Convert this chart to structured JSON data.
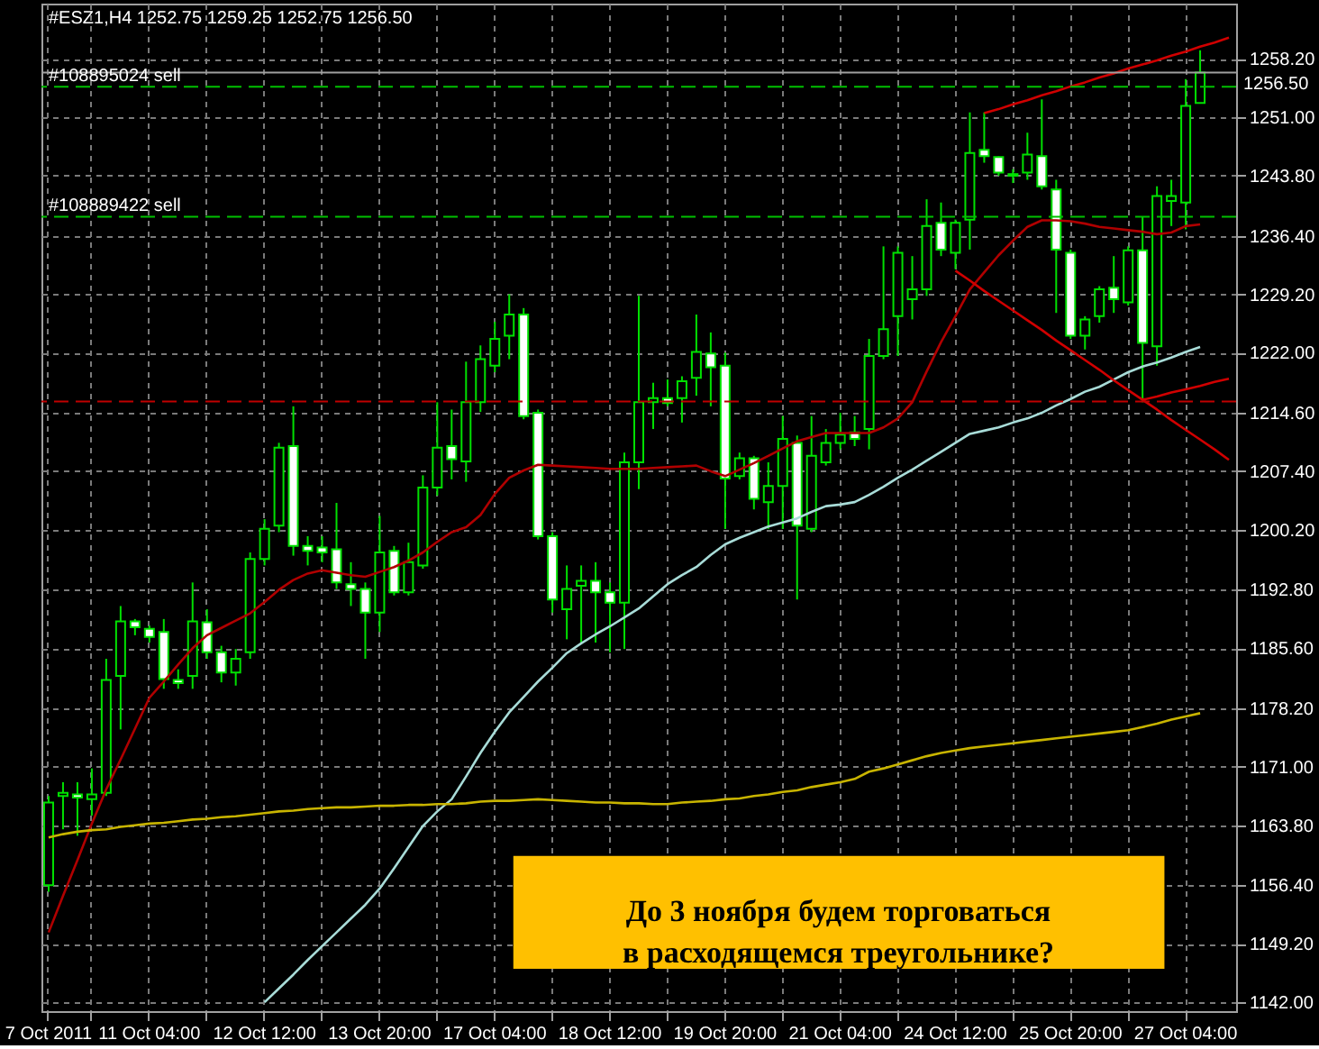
{
  "chart_data": {
    "type": "candlestick",
    "title": "#ESZ1,H4  1252.75 1259.25 1252.75 1256.50",
    "color": "#00e000",
    "categories": [
      "7 Oct 2011",
      null,
      null,
      null,
      null,
      null,
      null,
      "11 Oct 04:00",
      null,
      null,
      null,
      null,
      null,
      null,
      null,
      "12 Oct 12:00",
      null,
      null,
      null,
      null,
      null,
      null,
      null,
      "13 Oct 20:00",
      null,
      null,
      null,
      null,
      null,
      null,
      null,
      "17 Oct 04:00",
      null,
      null,
      null,
      null,
      null,
      null,
      null,
      "18 Oct 12:00",
      null,
      null,
      null,
      null,
      null,
      null,
      null,
      "19 Oct 20:00",
      null,
      null,
      null,
      null,
      null,
      null,
      null,
      "21 Oct 04:00",
      null,
      null,
      null,
      null,
      null,
      null,
      null,
      "24 Oct 12:00",
      null,
      null,
      null,
      null,
      null,
      null,
      null,
      "25 Oct 20:00",
      null,
      null,
      null,
      null,
      null,
      null,
      null,
      "27 Oct 04:00",
      null,
      null,
      null
    ],
    "ohlc": [
      [
        1156.4,
        1167.4,
        1155.6,
        1166.6
      ],
      [
        1167.4,
        1169.1,
        1163.3,
        1167.8
      ],
      [
        1167.6,
        1169.1,
        1162.5,
        1167.2
      ],
      [
        1167.0,
        1170.8,
        1165.0,
        1167.6
      ],
      [
        1167.8,
        1184.3,
        1167.4,
        1181.7
      ],
      [
        1182.2,
        1190.8,
        1175.6,
        1188.9
      ],
      [
        1188.9,
        1189.2,
        1187.2,
        1188.2
      ],
      [
        1188.0,
        1188.4,
        1186.3,
        1187.0
      ],
      [
        1187.6,
        1189.2,
        1180.6,
        1181.8
      ],
      [
        1181.7,
        1183.0,
        1180.6,
        1181.3
      ],
      [
        1182.2,
        1193.7,
        1180.6,
        1188.9
      ],
      [
        1188.8,
        1190.4,
        1184.3,
        1185.1
      ],
      [
        1185.1,
        1185.9,
        1181.4,
        1182.6
      ],
      [
        1182.6,
        1185.5,
        1181.0,
        1184.3
      ],
      [
        1185.1,
        1197.4,
        1184.3,
        1196.6
      ],
      [
        1196.6,
        1201.5,
        1195.8,
        1200.3
      ],
      [
        1200.7,
        1210.9,
        1199.9,
        1210.3
      ],
      [
        1210.5,
        1215.4,
        1197.0,
        1198.2
      ],
      [
        1198.2,
        1199.4,
        1195.8,
        1197.6
      ],
      [
        1198.0,
        1199.4,
        1196.2,
        1197.4
      ],
      [
        1197.8,
        1203.5,
        1192.9,
        1193.7
      ],
      [
        1193.5,
        1196.2,
        1190.8,
        1192.9
      ],
      [
        1192.9,
        1193.7,
        1184.3,
        1190.0
      ],
      [
        1190.0,
        1201.9,
        1187.6,
        1197.4
      ],
      [
        1197.6,
        1198.2,
        1192.1,
        1192.5
      ],
      [
        1192.5,
        1198.6,
        1192.1,
        1196.2
      ],
      [
        1195.8,
        1206.9,
        1195.4,
        1205.4
      ],
      [
        1205.4,
        1215.9,
        1204.4,
        1210.3
      ],
      [
        1210.5,
        1215.0,
        1206.4,
        1208.9
      ],
      [
        1208.6,
        1220.9,
        1206.1,
        1215.9
      ],
      [
        1215.9,
        1222.9,
        1214.7,
        1221.2
      ],
      [
        1220.4,
        1225.8,
        1219.6,
        1223.7
      ],
      [
        1224.1,
        1229.2,
        1221.2,
        1226.7
      ],
      [
        1226.7,
        1227.5,
        1213.8,
        1214.2
      ],
      [
        1214.6,
        1215.0,
        1199.0,
        1199.4
      ],
      [
        1199.4,
        1199.9,
        1190.0,
        1191.6
      ],
      [
        1190.4,
        1195.8,
        1186.7,
        1192.9
      ],
      [
        1193.3,
        1195.8,
        1186.3,
        1193.9
      ],
      [
        1193.9,
        1196.2,
        1186.3,
        1192.5
      ],
      [
        1192.5,
        1193.7,
        1185.1,
        1191.2
      ],
      [
        1191.2,
        1209.7,
        1185.5,
        1208.5
      ],
      [
        1208.5,
        1229.0,
        1205.2,
        1215.9
      ],
      [
        1215.9,
        1218.3,
        1212.6,
        1216.4
      ],
      [
        1216.4,
        1218.7,
        1215.4,
        1215.8
      ],
      [
        1216.4,
        1219.1,
        1213.4,
        1218.5
      ],
      [
        1218.9,
        1226.7,
        1216.7,
        1222.1
      ],
      [
        1221.9,
        1224.5,
        1215.4,
        1220.2
      ],
      [
        1220.4,
        1222.0,
        1200.3,
        1206.5
      ],
      [
        1206.8,
        1209.7,
        1206.4,
        1209.0
      ],
      [
        1209.0,
        1209.3,
        1202.7,
        1204.0
      ],
      [
        1203.6,
        1208.5,
        1200.3,
        1205.6
      ],
      [
        1205.6,
        1214.2,
        1200.3,
        1211.4
      ],
      [
        1210.9,
        1211.8,
        1191.6,
        1200.7
      ],
      [
        1200.3,
        1214.2,
        1199.9,
        1209.3
      ],
      [
        1208.5,
        1212.6,
        1208.1,
        1210.9
      ],
      [
        1210.9,
        1214.6,
        1210.1,
        1211.9
      ],
      [
        1212.2,
        1214.2,
        1210.5,
        1211.4
      ],
      [
        1212.6,
        1223.7,
        1210.1,
        1221.6
      ],
      [
        1221.6,
        1235.1,
        1221.2,
        1224.9
      ],
      [
        1226.5,
        1235.1,
        1221.6,
        1234.3
      ],
      [
        1228.6,
        1233.9,
        1226.1,
        1229.8
      ],
      [
        1229.8,
        1240.9,
        1229.0,
        1237.6
      ],
      [
        1238.0,
        1240.5,
        1233.9,
        1234.7
      ],
      [
        1234.3,
        1238.4,
        1232.3,
        1238.0
      ],
      [
        1238.4,
        1251.6,
        1234.7,
        1246.6
      ],
      [
        1247.0,
        1251.6,
        1245.4,
        1246.2
      ],
      [
        1246.1,
        1246.2,
        1243.8,
        1244.2
      ],
      [
        1244.0,
        1244.6,
        1242.9,
        1243.8
      ],
      [
        1244.2,
        1249.1,
        1243.3,
        1246.4
      ],
      [
        1246.2,
        1253.2,
        1242.1,
        1242.5
      ],
      [
        1242.1,
        1243.3,
        1226.9,
        1234.7
      ],
      [
        1234.3,
        1234.7,
        1223.7,
        1224.1
      ],
      [
        1224.1,
        1226.5,
        1222.4,
        1226.1
      ],
      [
        1226.5,
        1230.2,
        1225.7,
        1229.8
      ],
      [
        1230.0,
        1233.9,
        1226.9,
        1228.6
      ],
      [
        1228.2,
        1235.1,
        1227.8,
        1234.6
      ],
      [
        1234.6,
        1238.8,
        1215.9,
        1223.2
      ],
      [
        1222.8,
        1242.5,
        1220.4,
        1241.3
      ],
      [
        1240.7,
        1243.3,
        1237.6,
        1241.3
      ],
      [
        1240.5,
        1255.7,
        1237.2,
        1252.4
      ],
      [
        1252.75,
        1259.25,
        1252.75,
        1256.5
      ],
      null,
      null
    ],
    "colors": [
      "#000000",
      "#000000",
      "#ffffff",
      "#000000",
      "#000000",
      "#000000",
      "#ffffff",
      "#ffffff",
      "#ffffff",
      "#ffffff",
      "#000000",
      "#ffffff",
      "#ffffff",
      "#000000",
      "#000000",
      "#000000",
      "#000000",
      "#ffffff",
      "#ffffff",
      "#ffffff",
      "#ffffff",
      "#ffffff",
      "#ffffff",
      "#000000",
      "#ffffff",
      "#000000",
      "#000000",
      "#000000",
      "#ffffff",
      "#000000",
      "#000000",
      "#000000",
      "#000000",
      "#ffffff",
      "#ffffff",
      "#ffffff",
      "#000000",
      "#000000",
      "#ffffff",
      "#ffffff",
      "#000000",
      "#000000",
      "#000000",
      "#ffffff",
      "#000000",
      "#000000",
      "#ffffff",
      "#ffffff",
      "#000000",
      "#ffffff",
      "#000000",
      "#000000",
      "#ffffff",
      "#000000",
      "#000000",
      "#000000",
      "#ffffff",
      "#000000",
      "#000000",
      "#000000",
      "#000000",
      "#000000",
      "#ffffff",
      "#000000",
      "#000000",
      "#ffffff",
      "#ffffff",
      "#ffffff",
      "#000000",
      "#ffffff",
      "#ffffff",
      "#ffffff",
      "#000000",
      "#000000",
      "#ffffff",
      "#000000",
      "#ffffff",
      "#000000",
      "#000000",
      "#000000",
      "#000000",
      null,
      null
    ],
    "series": [
      {
        "type": "line",
        "color": "#b00000",
        "values": [
          1150.6,
          1155.1,
          1159.5,
          1164.0,
          1168.2,
          1171.9,
          1175.7,
          1179.5,
          1181.5,
          1183.6,
          1185.6,
          1187.2,
          1188.1,
          1189.0,
          1189.9,
          1191.3,
          1192.8,
          1194.0,
          1194.8,
          1195.2,
          1194.9,
          1194.6,
          1194.4,
          1195.0,
          1195.6,
          1196.4,
          1197.4,
          1198.7,
          1199.9,
          1200.5,
          1202.0,
          1204.6,
          1206.6,
          1207.5,
          1208.2,
          1208.1,
          1208.0,
          1207.9,
          1207.8,
          1207.7,
          1207.7,
          1207.7,
          1207.8,
          1207.9,
          1208.0,
          1208.1,
          1207.4,
          1206.8,
          1207.6,
          1208.4,
          1209.3,
          1210.2,
          1211.1,
          1211.6,
          1212.1,
          1212.1,
          1212.1,
          1212.1,
          1212.8,
          1213.9,
          1215.9,
          1219.7,
          1223.3,
          1226.5,
          1229.8,
          1231.9,
          1234.0,
          1235.8,
          1237.5,
          1238.3,
          1238.3,
          1238.2,
          1237.9,
          1237.5,
          1237.3,
          1237.1,
          1236.9,
          1236.6,
          1236.8,
          1237.6,
          1237.8,
          null,
          null
        ]
      },
      {
        "type": "line",
        "color": "#a8dcd8",
        "values": [
          null,
          null,
          null,
          null,
          null,
          null,
          null,
          null,
          null,
          null,
          null,
          null,
          null,
          null,
          null,
          1142.0,
          1143.7,
          1145.4,
          1147.2,
          1148.9,
          1150.6,
          1152.3,
          1154.0,
          1156.0,
          1158.5,
          1161.1,
          1163.7,
          1165.5,
          1167.0,
          1169.8,
          1172.7,
          1175.3,
          1177.7,
          1179.6,
          1181.5,
          1183.2,
          1185.0,
          1186.2,
          1187.3,
          1188.3,
          1189.4,
          1190.5,
          1192.0,
          1193.5,
          1194.6,
          1195.6,
          1197.1,
          1198.4,
          1199.2,
          1199.9,
          1200.6,
          1201.1,
          1201.6,
          1202.4,
          1203.1,
          1203.3,
          1203.6,
          1204.5,
          1205.5,
          1206.6,
          1207.6,
          1208.7,
          1209.8,
          1210.9,
          1212.0,
          1212.4,
          1212.8,
          1213.4,
          1213.9,
          1214.6,
          1215.5,
          1216.3,
          1217.2,
          1217.8,
          1218.7,
          1219.6,
          1220.3,
          1220.8,
          1221.4,
          1222.1,
          1222.7,
          null,
          null
        ]
      },
      {
        "type": "line",
        "color": "#c8b400",
        "values": [
          1162.3,
          1162.7,
          1163.0,
          1163.2,
          1163.3,
          1163.6,
          1163.8,
          1164.0,
          1164.1,
          1164.3,
          1164.5,
          1164.6,
          1164.8,
          1164.9,
          1165.1,
          1165.3,
          1165.5,
          1165.6,
          1165.8,
          1165.9,
          1166.0,
          1166.0,
          1166.1,
          1166.2,
          1166.2,
          1166.3,
          1166.3,
          1166.4,
          1166.4,
          1166.5,
          1166.7,
          1166.8,
          1166.8,
          1166.9,
          1167.0,
          1166.9,
          1166.8,
          1166.7,
          1166.6,
          1166.6,
          1166.5,
          1166.5,
          1166.4,
          1166.4,
          1166.6,
          1166.7,
          1166.8,
          1167.0,
          1167.1,
          1167.4,
          1167.6,
          1167.9,
          1168.1,
          1168.5,
          1168.8,
          1169.1,
          1169.5,
          1170.4,
          1170.8,
          1171.3,
          1171.8,
          1172.3,
          1172.7,
          1173.0,
          1173.3,
          1173.5,
          1173.7,
          1173.9,
          1174.1,
          1174.3,
          1174.5,
          1174.7,
          1174.9,
          1175.1,
          1175.3,
          1175.5,
          1175.9,
          1176.3,
          1176.8,
          1177.2,
          1177.6,
          null,
          null
        ]
      },
      {
        "type": "line",
        "color": "#d00000",
        "values": [
          null,
          null,
          null,
          null,
          null,
          null,
          null,
          null,
          null,
          null,
          null,
          null,
          null,
          null,
          null,
          null,
          null,
          null,
          null,
          null,
          null,
          null,
          null,
          null,
          null,
          null,
          null,
          null,
          null,
          null,
          null,
          null,
          null,
          null,
          null,
          null,
          null,
          null,
          null,
          null,
          null,
          null,
          null,
          null,
          null,
          null,
          null,
          null,
          null,
          null,
          null,
          null,
          null,
          null,
          null,
          null,
          null,
          null,
          null,
          null,
          null,
          null,
          null,
          null,
          null,
          1251.5,
          1252.0,
          1252.6,
          1253.1,
          1253.7,
          1254.2,
          1254.8,
          1255.3,
          1255.9,
          1256.4,
          1257.0,
          1257.5,
          1258.0,
          1258.6,
          1259.1,
          1259.7,
          1260.2,
          1260.8
        ]
      },
      {
        "type": "line",
        "color": "#d00000",
        "values": [
          null,
          null,
          null,
          null,
          null,
          null,
          null,
          null,
          null,
          null,
          null,
          null,
          null,
          null,
          null,
          null,
          null,
          null,
          null,
          null,
          null,
          null,
          null,
          null,
          null,
          null,
          null,
          null,
          null,
          null,
          null,
          null,
          null,
          null,
          null,
          null,
          null,
          null,
          null,
          null,
          null,
          null,
          null,
          null,
          null,
          null,
          null,
          null,
          null,
          null,
          null,
          null,
          null,
          null,
          null,
          null,
          null,
          null,
          null,
          null,
          null,
          null,
          null,
          1232.1,
          1230.9,
          1229.6,
          1228.4,
          1227.2,
          1226.0,
          1224.8,
          1223.5,
          1222.3,
          1221.1,
          1219.9,
          1218.6,
          1217.4,
          1216.2,
          1215.0,
          1213.7,
          1212.5,
          1211.3,
          1210.1,
          1208.8
        ]
      },
      {
        "type": "line",
        "color": "#d00000",
        "values": [
          null,
          null,
          null,
          null,
          null,
          null,
          null,
          null,
          null,
          null,
          null,
          null,
          null,
          null,
          null,
          null,
          null,
          null,
          null,
          null,
          null,
          null,
          null,
          null,
          null,
          null,
          null,
          null,
          null,
          null,
          null,
          null,
          null,
          null,
          null,
          null,
          null,
          null,
          null,
          null,
          null,
          null,
          null,
          null,
          null,
          null,
          null,
          null,
          null,
          null,
          null,
          null,
          null,
          null,
          null,
          null,
          null,
          null,
          null,
          null,
          null,
          null,
          null,
          null,
          null,
          null,
          null,
          null,
          null,
          null,
          null,
          null,
          null,
          null,
          null,
          null,
          1216.2,
          1216.6,
          1217.1,
          1217.5,
          1217.9,
          1218.4,
          1218.8
        ]
      }
    ],
    "ylim": [
      1140.9,
      1265.0
    ],
    "yticks": [
      {
        "value": 1142,
        "label": "1142.00"
      },
      {
        "value": 1149.2,
        "label": "1149.20"
      },
      {
        "value": 1156.4,
        "label": "1156.40"
      },
      {
        "value": 1163.8,
        "label": "1163.80"
      },
      {
        "value": 1171,
        "label": "1171.00"
      },
      {
        "value": 1178.2,
        "label": "1178.20"
      },
      {
        "value": 1185.6,
        "label": "1185.60"
      },
      {
        "value": 1192.8,
        "label": "1192.80"
      },
      {
        "value": 1200.2,
        "label": "1200.20"
      },
      {
        "value": 1207.4,
        "label": "1207.40"
      },
      {
        "value": 1214.6,
        "label": "1214.60"
      },
      {
        "value": 1222,
        "label": "1222.00"
      },
      {
        "value": 1229.2,
        "label": "1229.20"
      },
      {
        "value": 1236.4,
        "label": "1236.40"
      },
      {
        "value": 1243.8,
        "label": "1243.80"
      },
      {
        "value": 1251,
        "label": "1251.00"
      },
      {
        "value": 1258.2,
        "label": "1258.20"
      }
    ],
    "grid": true,
    "ref_lines": [
      {
        "axis": "y",
        "value": 1256.5,
        "label": "1256.50",
        "color": "#a0a0a0",
        "line_style": "solid"
      },
      {
        "axis": "y",
        "value": 1254.75,
        "label": "#108895024 sell",
        "color": "#00c000",
        "line_style": "dashed"
      },
      {
        "axis": "y",
        "value": 1238.75,
        "label": "#108889422 sell",
        "color": "#00c000",
        "line_style": "dashed"
      },
      {
        "axis": "y",
        "value": 1216.0,
        "color": "#c00000",
        "line_style": "dashed"
      }
    ],
    "annotations": [
      "До 3 ноября будем торговаться\nв расходящемся треугольнике?"
    ]
  }
}
